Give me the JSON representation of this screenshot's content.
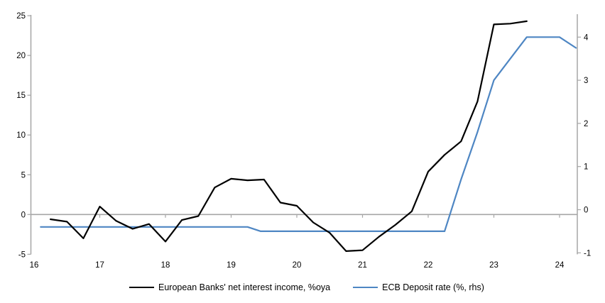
{
  "chart_data": {
    "type": "line",
    "title": "",
    "legend_position": "bottom",
    "grid": "zero-line-only",
    "x_axis": {
      "tick_labels": [
        16,
        17,
        18,
        19,
        20,
        21,
        22,
        23,
        24
      ],
      "range": [
        16,
        24.45
      ]
    },
    "left_axis": {
      "tick_labels": [
        25,
        20,
        15,
        10,
        5,
        0,
        -5
      ],
      "range": [
        -5,
        25
      ]
    },
    "right_axis": {
      "tick_labels": [
        4,
        3,
        2,
        1,
        0,
        -1
      ],
      "range": [
        -1,
        4.5
      ]
    },
    "series": [
      {
        "name": "European Banks' net interest income, %oya",
        "axis": "left",
        "color": "#000000",
        "x": [
          16.25,
          16.5,
          16.75,
          17.0,
          17.25,
          17.5,
          17.75,
          18.0,
          18.25,
          18.5,
          18.75,
          19.0,
          19.25,
          19.5,
          19.75,
          20.0,
          20.25,
          20.5,
          20.75,
          21.0,
          21.25,
          21.5,
          21.75,
          22.0,
          22.25,
          22.5,
          22.75,
          23.0,
          23.25,
          23.5
        ],
        "values": [
          -0.6,
          -0.9,
          -3.0,
          1.0,
          -0.8,
          -1.8,
          -1.2,
          -3.4,
          -0.7,
          -0.2,
          3.4,
          4.5,
          4.3,
          4.4,
          1.5,
          1.1,
          -1.0,
          -2.3,
          -4.6,
          -4.5,
          -2.8,
          -1.3,
          0.4,
          5.4,
          7.5,
          9.2,
          14.2,
          23.9,
          24.0,
          24.3
        ]
      },
      {
        "name": "ECB Deposit rate (%, rhs)",
        "axis": "right",
        "color": "#4e86c3",
        "x": [
          16.1,
          19.25,
          19.45,
          22.25,
          22.5,
          22.75,
          23.0,
          23.25,
          23.5,
          23.75,
          24.0,
          24.25
        ],
        "values": [
          -0.4,
          -0.4,
          -0.5,
          -0.5,
          0.7,
          1.8,
          3.0,
          3.5,
          4.0,
          4.0,
          4.0,
          3.75
        ]
      }
    ]
  },
  "colors": {
    "axis": "#a6a6a6",
    "zero_line": "#a6a6a6",
    "tick_text": "#000000",
    "background": "#ffffff"
  }
}
